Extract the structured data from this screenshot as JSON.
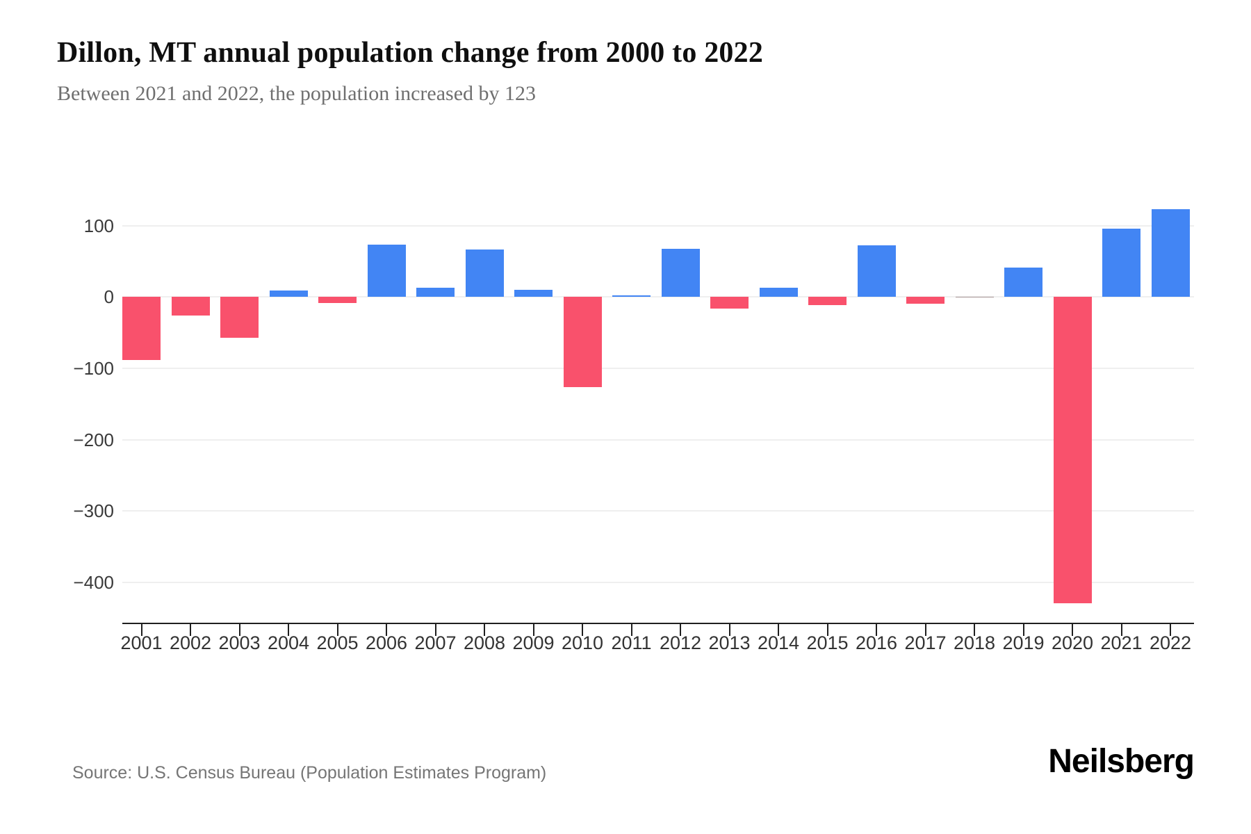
{
  "page": {
    "title": "Dillon, MT annual population change from 2000 to 2022",
    "subtitle": "Between 2021 and 2022, the population increased by 123",
    "source": "Source: U.S. Census Bureau (Population Estimates Program)",
    "brand": "Neilsberg"
  },
  "chart_data": {
    "type": "bar",
    "title": "Dillon, MT annual population change from 2000 to 2022",
    "subtitle": "Between 2021 and 2022, the population increased by 123",
    "xlabel": "",
    "ylabel": "",
    "categories": [
      "2001",
      "2002",
      "2003",
      "2004",
      "2005",
      "2006",
      "2007",
      "2008",
      "2009",
      "2010",
      "2011",
      "2012",
      "2013",
      "2014",
      "2015",
      "2016",
      "2017",
      "2018",
      "2019",
      "2020",
      "2021",
      "2022"
    ],
    "values": [
      -88,
      -26,
      -57,
      9,
      -8,
      73,
      13,
      67,
      10,
      -126,
      1,
      68,
      -16,
      13,
      -11,
      72,
      -9,
      0,
      41,
      -430,
      96,
      123
    ],
    "ylim": [
      -460,
      150
    ],
    "yticks": [
      {
        "label": "100",
        "value": 100
      },
      {
        "label": "0",
        "value": 0
      },
      {
        "label": "−100",
        "value": -100
      },
      {
        "label": "−200",
        "value": -200
      },
      {
        "label": "−300",
        "value": -300
      },
      {
        "label": "−400",
        "value": -400
      }
    ],
    "grid": true,
    "legend": false,
    "colors": {
      "positive": "#4285f4",
      "negative": "#f9516c",
      "zero_bar": "#a59393",
      "gridline": "#efefef",
      "axis": "#1f1f1f"
    }
  }
}
